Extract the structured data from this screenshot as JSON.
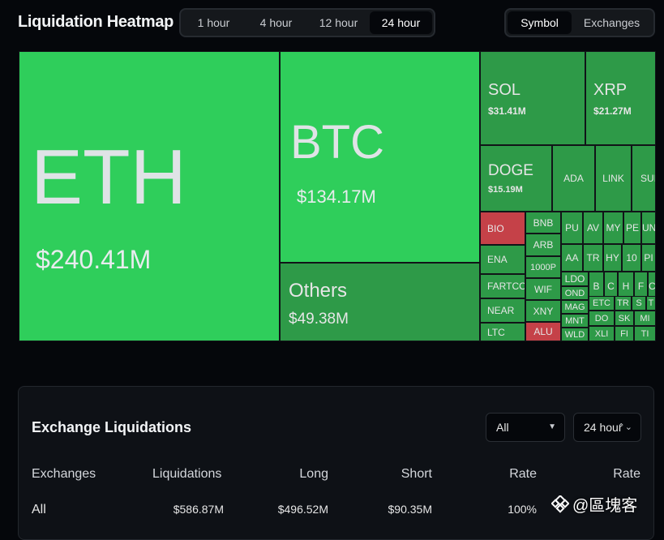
{
  "header": {
    "title": "Liquidation Heatmap",
    "time_options": [
      "1 hour",
      "4 hour",
      "12 hour",
      "24 hour"
    ],
    "time_selected": "24 hour",
    "mode_options": [
      "Symbol",
      "Exchanges"
    ],
    "mode_selected": "Symbol"
  },
  "heatmap": {
    "big": [
      {
        "symbol": "ETH",
        "value": "$240.41M"
      },
      {
        "symbol": "BTC",
        "value": "$134.17M"
      },
      {
        "symbol": "Others",
        "value": "$49.38M"
      },
      {
        "symbol": "SOL",
        "value": "$31.41M"
      },
      {
        "symbol": "XRP",
        "value": "$21.27M"
      },
      {
        "symbol": "DOGE",
        "value": "$15.19M"
      }
    ],
    "small": [
      "ADA",
      "LINK",
      "SUI",
      "BIO",
      "BNB",
      "ARB",
      "ENA",
      "1000P",
      "FARTCO",
      "WIF",
      "NEAR",
      "XNY",
      "LTC",
      "ALU",
      "PU",
      "AV",
      "MY",
      "PE",
      "UN",
      "AA",
      "TR",
      "HY",
      "10",
      "PI",
      "LDO",
      "OND",
      "B",
      "C",
      "H",
      "F",
      "C",
      "MAG",
      "ETC",
      "TR",
      "S",
      "T",
      "MNT",
      "DO",
      "SK",
      "MI",
      "WLD",
      "XLI",
      "FI",
      "TI"
    ]
  },
  "exchange_panel": {
    "title": "Exchange Liquidations",
    "filter_value": "All",
    "period_value": "24 hour",
    "columns": [
      "Exchanges",
      "Liquidations",
      "Long",
      "Short",
      "Rate",
      "Rate"
    ],
    "rows": [
      {
        "exchange": "All",
        "liquidations": "$586.87M",
        "long": "$496.52M",
        "short": "$90.35M",
        "rate": "100%"
      }
    ]
  },
  "watermark": {
    "text": "@區塊客"
  },
  "colors": {
    "bright_green": "#2fce5b",
    "dark_green": "#2e9a48",
    "red": "#c54148",
    "background": "#05070b"
  }
}
